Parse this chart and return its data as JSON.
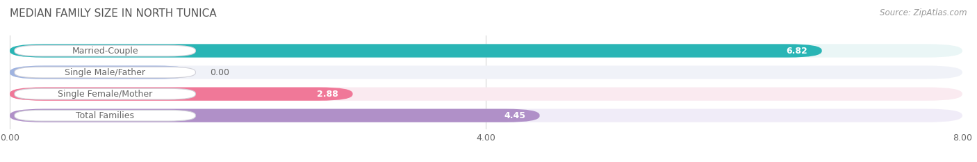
{
  "title": "MEDIAN FAMILY SIZE IN NORTH TUNICA",
  "source": "Source: ZipAtlas.com",
  "categories": [
    "Married-Couple",
    "Single Male/Father",
    "Single Female/Mother",
    "Total Families"
  ],
  "values": [
    6.82,
    0.0,
    2.88,
    4.45
  ],
  "bar_colors": [
    "#29b5b5",
    "#a0b4e0",
    "#f07898",
    "#b090c8"
  ],
  "bar_bg_colors": [
    "#eaf6f6",
    "#f0f2f8",
    "#faeaf0",
    "#f0ecf8"
  ],
  "value_in_bar": [
    true,
    false,
    false,
    false
  ],
  "value_colors_in": [
    "#ffffff",
    "#777777",
    "#777777",
    "#777777"
  ],
  "xlim": [
    0,
    8.0
  ],
  "xticks": [
    0.0,
    4.0,
    8.0
  ],
  "xtick_labels": [
    "0.00",
    "4.00",
    "8.00"
  ],
  "label_color": "#666666",
  "title_color": "#555555",
  "source_color": "#999999",
  "value_label_color": "#666666",
  "bar_height": 0.62,
  "label_fontsize": 9,
  "title_fontsize": 11,
  "source_fontsize": 8.5,
  "value_fontsize": 9
}
